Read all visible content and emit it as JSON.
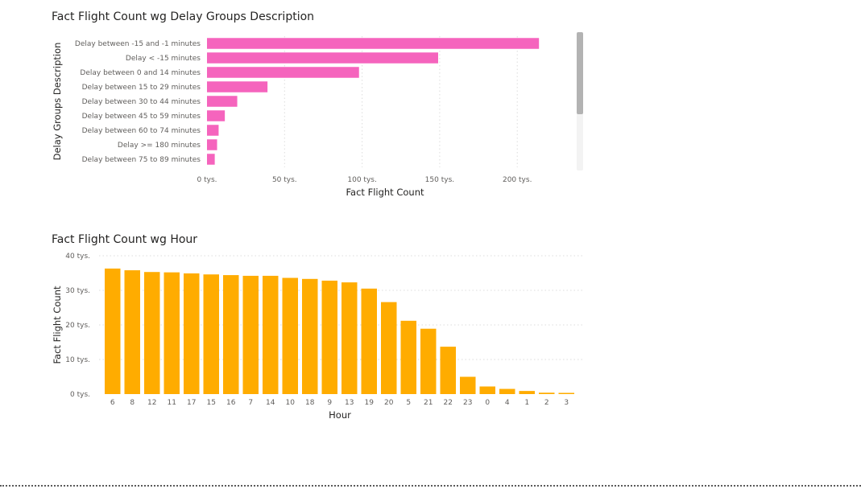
{
  "chart_data": [
    {
      "type": "bar",
      "orientation": "horizontal",
      "title": "Fact Flight Count wg Delay Groups Description",
      "xlabel": "Fact Flight Count",
      "ylabel": "Delay Groups Description",
      "categories": [
        "Delay between -15 and -1 minutes",
        "Delay < -15 minutes",
        "Delay between 0 and 14 minutes",
        "Delay between 15 to 29 minutes",
        "Delay between 30 to 44 minutes",
        "Delay between 45 to 59 minutes",
        "Delay between 60 to 74 minutes",
        "Delay >= 180 minutes",
        "Delay between 75 to 89 minutes"
      ],
      "values": [
        214000,
        149000,
        98000,
        39000,
        19500,
        11500,
        7500,
        6500,
        5000
      ],
      "xlim": [
        0,
        230000
      ],
      "xticks": [
        0,
        50000,
        100000,
        150000,
        200000
      ],
      "xtick_labels": [
        "0 tys.",
        "50 tys.",
        "100 tys.",
        "150 tys.",
        "200 tys."
      ],
      "color": "#F564BD",
      "grid": true,
      "scrollbar": true
    },
    {
      "type": "bar",
      "orientation": "vertical",
      "title": "Fact Flight Count wg Hour",
      "xlabel": "Hour",
      "ylabel": "Fact Flight Count",
      "categories": [
        "6",
        "8",
        "12",
        "11",
        "17",
        "15",
        "16",
        "7",
        "14",
        "10",
        "18",
        "9",
        "13",
        "19",
        "20",
        "5",
        "21",
        "22",
        "23",
        "0",
        "4",
        "1",
        "2",
        "3"
      ],
      "values": [
        36300,
        35800,
        35300,
        35200,
        34900,
        34600,
        34400,
        34200,
        34200,
        33600,
        33300,
        32800,
        32300,
        30500,
        26600,
        21200,
        18900,
        13700,
        5000,
        2200,
        1500,
        900,
        400,
        350
      ],
      "ylim": [
        0,
        40000
      ],
      "yticks": [
        0,
        10000,
        20000,
        30000,
        40000
      ],
      "ytick_labels": [
        "0 tys.",
        "10 tys.",
        "20 tys.",
        "30 tys.",
        "40 tys."
      ],
      "color": "#FFAC00",
      "grid": true
    }
  ]
}
